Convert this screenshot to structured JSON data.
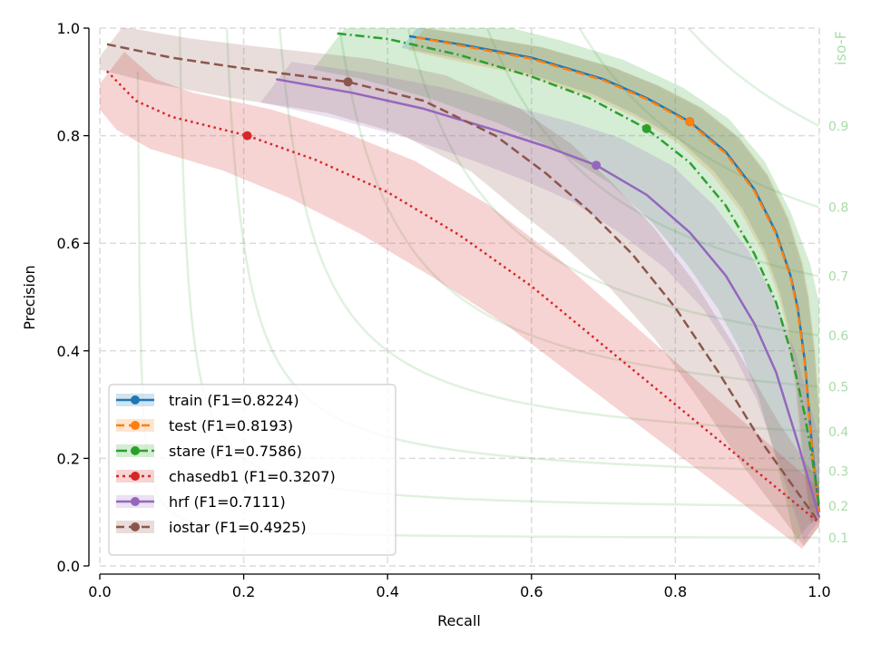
{
  "chart_data": {
    "type": "line",
    "title": "",
    "xlabel": "Recall",
    "ylabel": "Precision",
    "xlim": [
      0.0,
      1.0
    ],
    "ylim": [
      0.0,
      1.0
    ],
    "xticks": [
      "0.0",
      "0.2",
      "0.4",
      "0.6",
      "0.8",
      "1.0"
    ],
    "yticks": [
      "0.0",
      "0.2",
      "0.4",
      "0.6",
      "0.8",
      "1.0"
    ],
    "xtick_values": [
      0.0,
      0.2,
      0.4,
      0.6,
      0.8,
      1.0
    ],
    "ytick_values": [
      0.0,
      0.2,
      0.4,
      0.6,
      0.8,
      1.0
    ],
    "grid": true,
    "legend_position": "lower-left",
    "iso_f": {
      "title": "iso-F",
      "color": "#2ca02c",
      "values": [
        0.1,
        0.2,
        0.3,
        0.4,
        0.5,
        0.6,
        0.7,
        0.8,
        0.9
      ],
      "labels": [
        "0.1",
        "0.2",
        "0.3",
        "0.4",
        "0.5",
        "0.6",
        "0.7",
        "0.8",
        "0.9"
      ]
    },
    "series": [
      {
        "name": "train",
        "label": "train (F1=0.8224)",
        "f1": 0.8224,
        "color": "#1f77b4",
        "linestyle": "solid",
        "marker": [
          0.82,
          0.826
        ],
        "x": [
          0.43,
          0.5,
          0.6,
          0.7,
          0.76,
          0.82,
          0.87,
          0.91,
          0.94,
          0.96,
          0.97,
          0.98,
          0.99,
          1.0
        ],
        "y": [
          0.985,
          0.97,
          0.945,
          0.905,
          0.87,
          0.826,
          0.77,
          0.7,
          0.62,
          0.54,
          0.48,
          0.38,
          0.22,
          0.1
        ],
        "band": 0.045
      },
      {
        "name": "test",
        "label": "test (F1=0.8193)",
        "f1": 0.8193,
        "color": "#ff7f0e",
        "linestyle": "dashed",
        "marker": [
          0.82,
          0.826
        ],
        "x": [
          0.44,
          0.5,
          0.6,
          0.7,
          0.76,
          0.82,
          0.87,
          0.91,
          0.94,
          0.96,
          0.97,
          0.98,
          0.99,
          1.0
        ],
        "y": [
          0.983,
          0.968,
          0.943,
          0.903,
          0.868,
          0.824,
          0.767,
          0.697,
          0.617,
          0.537,
          0.475,
          0.375,
          0.215,
          0.1
        ],
        "band": 0.05
      },
      {
        "name": "stare",
        "label": "stare (F1=0.7586)",
        "f1": 0.7586,
        "color": "#2ca02c",
        "linestyle": "dashdot",
        "marker": [
          0.76,
          0.813
        ],
        "x": [
          0.33,
          0.4,
          0.5,
          0.6,
          0.68,
          0.76,
          0.82,
          0.87,
          0.91,
          0.94,
          0.96,
          0.98,
          0.99,
          1.0
        ],
        "y": [
          0.99,
          0.98,
          0.95,
          0.91,
          0.87,
          0.813,
          0.75,
          0.67,
          0.58,
          0.49,
          0.4,
          0.28,
          0.2,
          0.11
        ],
        "band": 0.14
      },
      {
        "name": "chasedb1",
        "label": "chasedb1 (F1=0.3207)",
        "f1": 0.3207,
        "color": "#d62728",
        "linestyle": "dotted",
        "marker": [
          0.205,
          0.8
        ],
        "x": [
          0.01,
          0.05,
          0.1,
          0.205,
          0.3,
          0.4,
          0.5,
          0.6,
          0.7,
          0.8,
          0.9,
          1.0
        ],
        "y": [
          0.92,
          0.865,
          0.835,
          0.8,
          0.755,
          0.695,
          0.615,
          0.52,
          0.41,
          0.3,
          0.19,
          0.08
        ],
        "band": 0.1
      },
      {
        "name": "hrf",
        "label": "hrf (F1=0.7111)",
        "f1": 0.7111,
        "color": "#9467bd",
        "linestyle": "solid",
        "marker": [
          0.69,
          0.745
        ],
        "x": [
          0.245,
          0.35,
          0.45,
          0.55,
          0.62,
          0.69,
          0.76,
          0.82,
          0.87,
          0.91,
          0.94,
          0.97,
          1.0
        ],
        "y": [
          0.905,
          0.88,
          0.85,
          0.81,
          0.78,
          0.745,
          0.69,
          0.62,
          0.54,
          0.45,
          0.36,
          0.23,
          0.09
        ],
        "band": 0.09
      },
      {
        "name": "iostar",
        "label": "iostar (F1=0.4925)",
        "f1": 0.4925,
        "color": "#8c564b",
        "linestyle": "dashed",
        "marker": [
          0.345,
          0.9
        ],
        "x": [
          0.01,
          0.1,
          0.2,
          0.345,
          0.45,
          0.55,
          0.62,
          0.68,
          0.74,
          0.8,
          0.86,
          0.92,
          1.0
        ],
        "y": [
          0.97,
          0.945,
          0.925,
          0.9,
          0.865,
          0.8,
          0.73,
          0.66,
          0.58,
          0.48,
          0.36,
          0.23,
          0.08
        ],
        "band": 0.09
      }
    ]
  }
}
